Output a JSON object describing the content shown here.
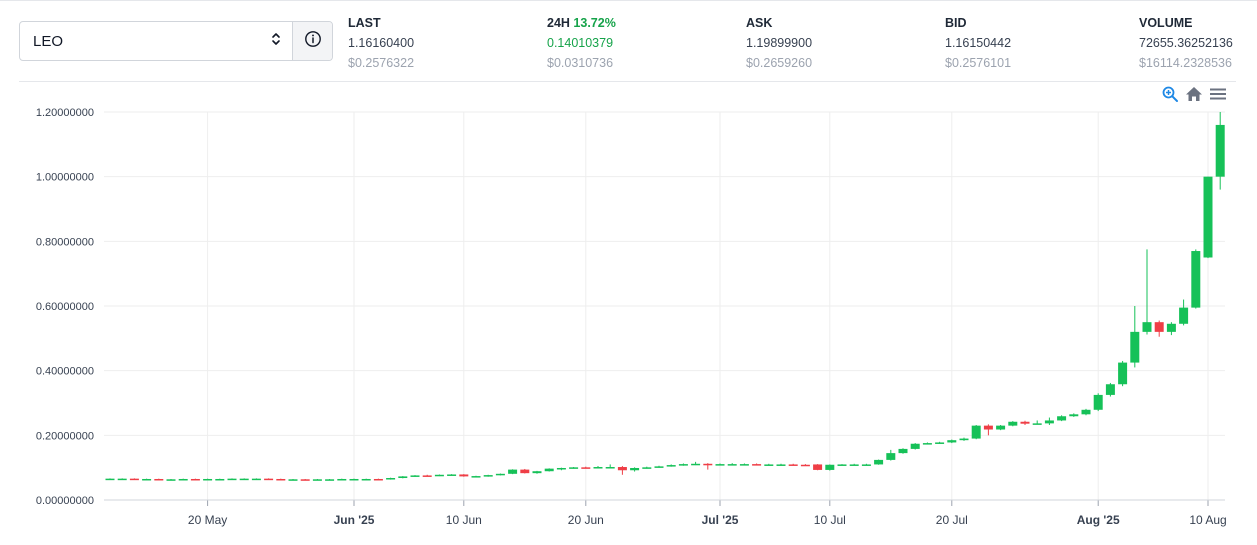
{
  "selector": {
    "value": "LEO"
  },
  "stats": {
    "last": {
      "label": "LAST",
      "value": "1.16160400",
      "usd": "$0.2576322"
    },
    "change": {
      "label": "24H",
      "percent": "13.72%",
      "value": "0.14010379",
      "usd": "$0.0310736"
    },
    "ask": {
      "label": "ASK",
      "value": "1.19899900",
      "usd": "$0.2659260"
    },
    "bid": {
      "label": "BID",
      "value": "1.16150442",
      "usd": "$0.2576101"
    },
    "volume": {
      "label": "VOLUME",
      "value": "72655.36252136",
      "usd": "$16114.2328536"
    }
  },
  "toolbar": {
    "zoom_icon": "zoom-in-icon",
    "home_icon": "home-icon",
    "menu_icon": "menu-icon"
  },
  "colors": {
    "up": "#16c158",
    "down": "#ef3e46",
    "grid": "#eeeeee",
    "accent": "#1e88e5"
  },
  "chart_data": {
    "type": "candlestick",
    "x_start": "2025-05-12",
    "ylim": [
      0,
      1.2
    ],
    "y_ticks": [
      "0.00000000",
      "0.20000000",
      "0.40000000",
      "0.60000000",
      "0.80000000",
      "1.00000000",
      "1.20000000"
    ],
    "x_ticks": [
      {
        "label": "20 May",
        "date": "2025-05-20",
        "bold": false
      },
      {
        "label": "Jun '25",
        "date": "2025-06-01",
        "bold": true
      },
      {
        "label": "10 Jun",
        "date": "2025-06-10",
        "bold": false
      },
      {
        "label": "20 Jun",
        "date": "2025-06-20",
        "bold": false
      },
      {
        "label": "Jul '25",
        "date": "2025-07-01",
        "bold": true
      },
      {
        "label": "10 Jul",
        "date": "2025-07-10",
        "bold": false
      },
      {
        "label": "20 Jul",
        "date": "2025-07-20",
        "bold": false
      },
      {
        "label": "Aug '25",
        "date": "2025-08-01",
        "bold": true
      },
      {
        "label": "10 Aug",
        "date": "2025-08-10",
        "bold": false
      }
    ],
    "candles": [
      [
        "2025-05-12",
        0.066,
        0.067,
        0.065,
        0.066
      ],
      [
        "2025-05-13",
        0.066,
        0.067,
        0.065,
        0.066
      ],
      [
        "2025-05-14",
        0.066,
        0.067,
        0.065,
        0.065
      ],
      [
        "2025-05-15",
        0.065,
        0.066,
        0.064,
        0.065
      ],
      [
        "2025-05-16",
        0.065,
        0.066,
        0.064,
        0.064
      ],
      [
        "2025-05-17",
        0.064,
        0.065,
        0.063,
        0.064
      ],
      [
        "2025-05-18",
        0.064,
        0.066,
        0.063,
        0.065
      ],
      [
        "2025-05-19",
        0.065,
        0.066,
        0.063,
        0.064
      ],
      [
        "2025-05-20",
        0.064,
        0.066,
        0.063,
        0.065
      ],
      [
        "2025-05-21",
        0.065,
        0.066,
        0.064,
        0.065
      ],
      [
        "2025-05-22",
        0.065,
        0.067,
        0.064,
        0.066
      ],
      [
        "2025-05-23",
        0.066,
        0.067,
        0.065,
        0.066
      ],
      [
        "2025-05-24",
        0.066,
        0.067,
        0.065,
        0.066
      ],
      [
        "2025-05-25",
        0.066,
        0.067,
        0.065,
        0.065
      ],
      [
        "2025-05-26",
        0.065,
        0.066,
        0.064,
        0.064
      ],
      [
        "2025-05-27",
        0.064,
        0.065,
        0.063,
        0.064
      ],
      [
        "2025-05-28",
        0.064,
        0.065,
        0.062,
        0.063
      ],
      [
        "2025-05-29",
        0.063,
        0.065,
        0.062,
        0.064
      ],
      [
        "2025-05-30",
        0.064,
        0.065,
        0.063,
        0.064
      ],
      [
        "2025-05-31",
        0.064,
        0.066,
        0.063,
        0.065
      ],
      [
        "2025-06-01",
        0.065,
        0.066,
        0.064,
        0.065
      ],
      [
        "2025-06-02",
        0.065,
        0.066,
        0.064,
        0.065
      ],
      [
        "2025-06-03",
        0.065,
        0.066,
        0.063,
        0.064
      ],
      [
        "2025-06-04",
        0.064,
        0.069,
        0.063,
        0.068
      ],
      [
        "2025-06-05",
        0.068,
        0.074,
        0.067,
        0.073
      ],
      [
        "2025-06-06",
        0.073,
        0.077,
        0.072,
        0.076
      ],
      [
        "2025-06-07",
        0.076,
        0.078,
        0.074,
        0.075
      ],
      [
        "2025-06-08",
        0.075,
        0.079,
        0.074,
        0.078
      ],
      [
        "2025-06-09",
        0.078,
        0.08,
        0.076,
        0.079
      ],
      [
        "2025-06-10",
        0.079,
        0.08,
        0.072,
        0.073
      ],
      [
        "2025-06-11",
        0.073,
        0.075,
        0.071,
        0.074
      ],
      [
        "2025-06-12",
        0.074,
        0.078,
        0.072,
        0.077
      ],
      [
        "2025-06-13",
        0.077,
        0.082,
        0.076,
        0.081
      ],
      [
        "2025-06-14",
        0.081,
        0.095,
        0.08,
        0.094
      ],
      [
        "2025-06-15",
        0.094,
        0.096,
        0.082,
        0.083
      ],
      [
        "2025-06-16",
        0.083,
        0.09,
        0.081,
        0.089
      ],
      [
        "2025-06-17",
        0.089,
        0.098,
        0.088,
        0.097
      ],
      [
        "2025-06-18",
        0.097,
        0.1,
        0.092,
        0.099
      ],
      [
        "2025-06-19",
        0.099,
        0.102,
        0.097,
        0.101
      ],
      [
        "2025-06-20",
        0.101,
        0.103,
        0.098,
        0.1
      ],
      [
        "2025-06-21",
        0.1,
        0.105,
        0.099,
        0.102
      ],
      [
        "2025-06-22",
        0.102,
        0.11,
        0.101,
        0.102
      ],
      [
        "2025-06-23",
        0.102,
        0.105,
        0.078,
        0.092
      ],
      [
        "2025-06-24",
        0.092,
        0.101,
        0.088,
        0.099
      ],
      [
        "2025-06-25",
        0.099,
        0.103,
        0.097,
        0.101
      ],
      [
        "2025-06-26",
        0.101,
        0.106,
        0.1,
        0.104
      ],
      [
        "2025-06-27",
        0.104,
        0.11,
        0.103,
        0.108
      ],
      [
        "2025-06-28",
        0.108,
        0.113,
        0.106,
        0.111
      ],
      [
        "2025-06-29",
        0.111,
        0.118,
        0.108,
        0.112
      ],
      [
        "2025-06-30",
        0.112,
        0.114,
        0.094,
        0.11
      ],
      [
        "2025-07-01",
        0.11,
        0.113,
        0.109,
        0.111
      ],
      [
        "2025-07-02",
        0.111,
        0.114,
        0.109,
        0.111
      ],
      [
        "2025-07-03",
        0.111,
        0.113,
        0.109,
        0.111
      ],
      [
        "2025-07-04",
        0.111,
        0.113,
        0.109,
        0.11
      ],
      [
        "2025-07-05",
        0.11,
        0.112,
        0.108,
        0.11
      ],
      [
        "2025-07-06",
        0.11,
        0.112,
        0.108,
        0.11
      ],
      [
        "2025-07-07",
        0.11,
        0.112,
        0.108,
        0.109
      ],
      [
        "2025-07-08",
        0.109,
        0.111,
        0.107,
        0.108
      ],
      [
        "2025-07-09",
        0.11,
        0.111,
        0.092,
        0.093
      ],
      [
        "2025-07-10",
        0.093,
        0.11,
        0.091,
        0.109
      ],
      [
        "2025-07-11",
        0.109,
        0.111,
        0.107,
        0.11
      ],
      [
        "2025-07-12",
        0.11,
        0.112,
        0.108,
        0.11
      ],
      [
        "2025-07-13",
        0.11,
        0.112,
        0.108,
        0.11
      ],
      [
        "2025-07-14",
        0.11,
        0.125,
        0.109,
        0.124
      ],
      [
        "2025-07-15",
        0.124,
        0.155,
        0.122,
        0.145
      ],
      [
        "2025-07-16",
        0.145,
        0.16,
        0.143,
        0.158
      ],
      [
        "2025-07-17",
        0.158,
        0.176,
        0.156,
        0.174
      ],
      [
        "2025-07-18",
        0.174,
        0.178,
        0.172,
        0.176
      ],
      [
        "2025-07-19",
        0.176,
        0.18,
        0.174,
        0.178
      ],
      [
        "2025-07-20",
        0.178,
        0.187,
        0.176,
        0.185
      ],
      [
        "2025-07-21",
        0.185,
        0.193,
        0.183,
        0.19
      ],
      [
        "2025-07-22",
        0.19,
        0.232,
        0.188,
        0.23
      ],
      [
        "2025-07-23",
        0.23,
        0.234,
        0.2,
        0.218
      ],
      [
        "2025-07-24",
        0.218,
        0.232,
        0.216,
        0.23
      ],
      [
        "2025-07-25",
        0.23,
        0.244,
        0.228,
        0.242
      ],
      [
        "2025-07-26",
        0.242,
        0.245,
        0.232,
        0.236
      ],
      [
        "2025-07-27",
        0.236,
        0.246,
        0.234,
        0.237
      ],
      [
        "2025-07-28",
        0.237,
        0.255,
        0.232,
        0.246
      ],
      [
        "2025-07-29",
        0.246,
        0.262,
        0.244,
        0.259
      ],
      [
        "2025-07-30",
        0.259,
        0.268,
        0.257,
        0.265
      ],
      [
        "2025-07-31",
        0.265,
        0.282,
        0.262,
        0.279
      ],
      [
        "2025-08-01",
        0.279,
        0.33,
        0.275,
        0.325
      ],
      [
        "2025-08-02",
        0.325,
        0.362,
        0.32,
        0.358
      ],
      [
        "2025-08-03",
        0.358,
        0.43,
        0.352,
        0.425
      ],
      [
        "2025-08-04",
        0.425,
        0.6,
        0.41,
        0.52
      ],
      [
        "2025-08-05",
        0.52,
        0.775,
        0.512,
        0.55
      ],
      [
        "2025-08-06",
        0.55,
        0.555,
        0.505,
        0.52
      ],
      [
        "2025-08-07",
        0.52,
        0.55,
        0.51,
        0.545
      ],
      [
        "2025-08-08",
        0.545,
        0.62,
        0.54,
        0.595
      ],
      [
        "2025-08-09",
        0.595,
        0.775,
        0.592,
        0.77
      ],
      [
        "2025-08-10",
        0.75,
        1.0,
        0.748,
        1.0
      ],
      [
        "2025-08-11",
        1.0,
        1.2,
        0.96,
        1.16
      ]
    ]
  }
}
